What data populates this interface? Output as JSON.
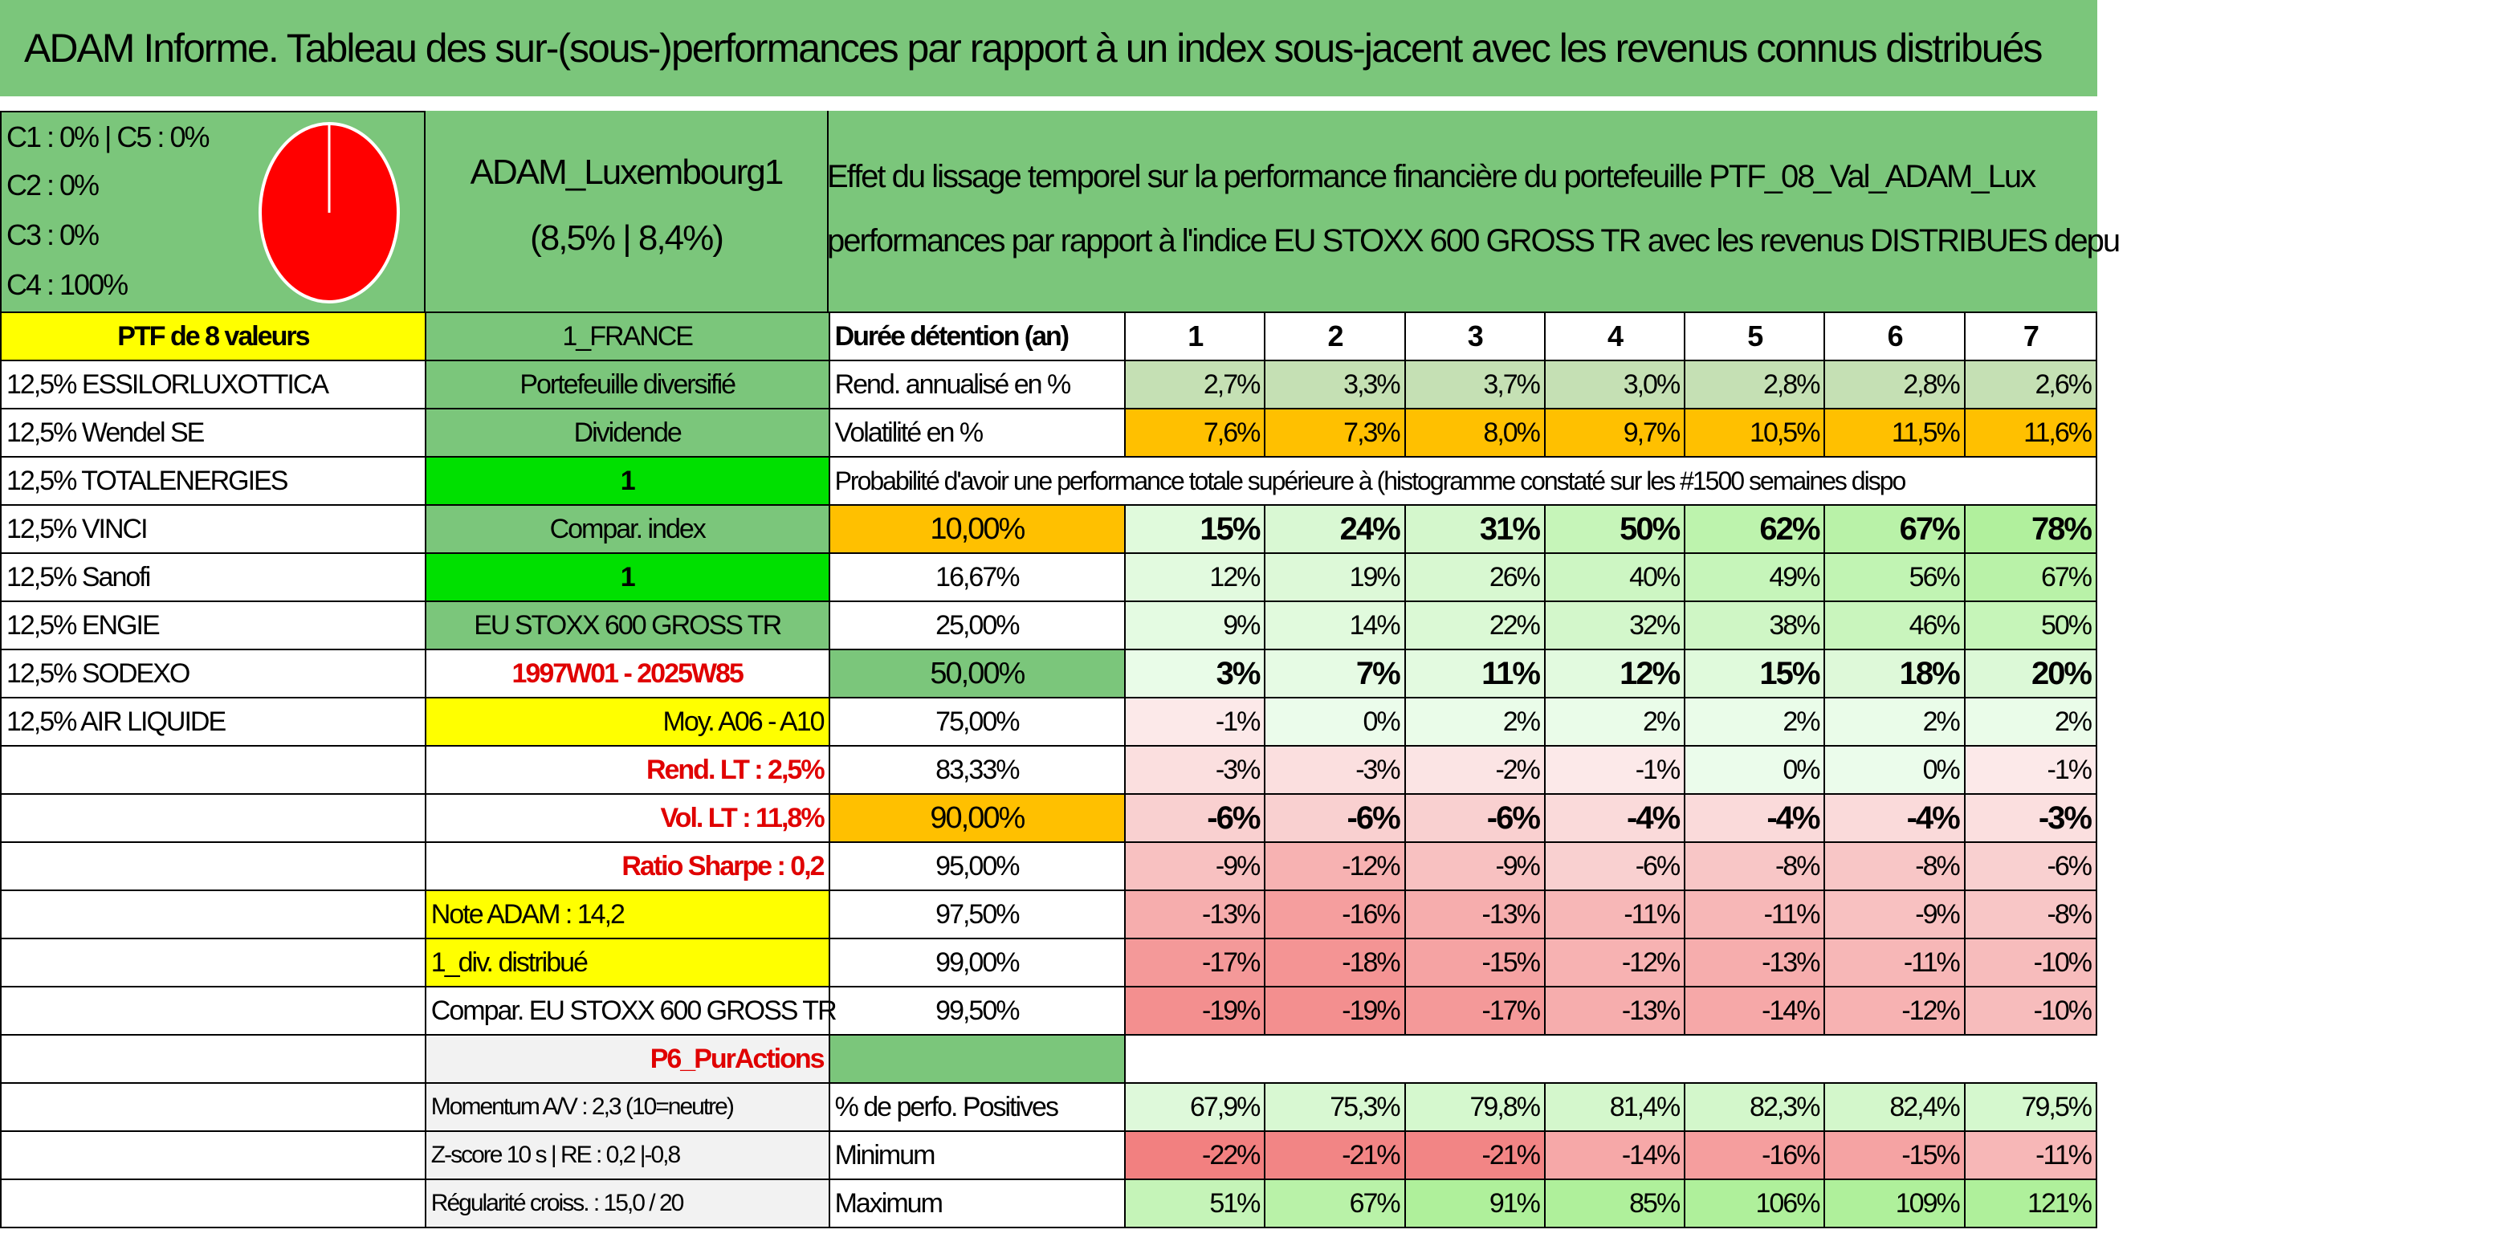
{
  "title": "ADAM Informe. Tableau des sur-(sous-)performances par rapport à un index sous-jacent avec les revenus connus distribués",
  "legend": [
    "C1 : 0% | C5 : 0%",
    "C2 : 0%",
    "C3 : 0%",
    "C4 : 100%"
  ],
  "pie_color": "#ff0000",
  "fund": {
    "name": "ADAM_Luxembourg1",
    "perf": "(8,5% | 8,4%)"
  },
  "description": {
    "line1": "Effet du lissage temporel sur la performance financière du portefeuille PTF_08_Val_ADAM_Lux",
    "line2": "performances par rapport à l'indice EU STOXX 600 GROSS TR avec les revenus DISTRIBUES depu"
  },
  "ptf_label": "PTF de 8 valeurs",
  "country": "1_FRANCE",
  "holdings": [
    "12,5% ESSILORLUXOTTICA",
    "12,5% Wendel SE",
    "12,5% TOTALENERGIES",
    "12,5% VINCI",
    "12,5% Sanofi",
    "12,5% ENGIE",
    "12,5% SODEXO",
    "12,5% AIR LIQUIDE"
  ],
  "mid_column": [
    "Portefeuille diversifié",
    "Dividende",
    "1",
    "Compar. index",
    "1",
    "EU STOXX 600 GROSS TR",
    "1997W01 - 2025W85",
    "Moy. A06 - A10",
    "Rend. LT : 2,5%",
    "Vol. LT : 11,8%",
    "Ratio Sharpe : 0,2",
    "Note ADAM : 14,2",
    "1_div. distribué",
    "Compar. EU STOXX 600 GROSS TR",
    "P6_PurActions",
    "Momentum A/V : 2,3 (10=neutre)",
    "Z-score 10 s | RE : 0,2 |-0,8",
    "Régularité croiss. : 15,0 / 20"
  ],
  "table": {
    "header_label": "Durée détention (an)",
    "years": [
      "1",
      "2",
      "3",
      "4",
      "5",
      "6",
      "7"
    ],
    "rend_label": "Rend. annualisé en %",
    "rend": [
      "2,7%",
      "3,3%",
      "3,7%",
      "3,0%",
      "2,8%",
      "2,8%",
      "2,6%"
    ],
    "vol_label": "Volatilité en %",
    "vol": [
      "7,6%",
      "7,3%",
      "8,0%",
      "9,7%",
      "10,5%",
      "11,5%",
      "11,6%"
    ],
    "prob_label": "Probabilité d'avoir une performance totale supérieure à (histogramme constaté sur les #1500 semaines dispo",
    "quantiles": [
      {
        "q": "10,00%",
        "v": [
          "15%",
          "24%",
          "31%",
          "50%",
          "62%",
          "67%",
          "78%"
        ]
      },
      {
        "q": "16,67%",
        "v": [
          "12%",
          "19%",
          "26%",
          "40%",
          "49%",
          "56%",
          "67%"
        ]
      },
      {
        "q": "25,00%",
        "v": [
          "9%",
          "14%",
          "22%",
          "32%",
          "38%",
          "46%",
          "50%"
        ]
      },
      {
        "q": "50,00%",
        "v": [
          "3%",
          "7%",
          "11%",
          "12%",
          "15%",
          "18%",
          "20%"
        ]
      },
      {
        "q": "75,00%",
        "v": [
          "-1%",
          "0%",
          "2%",
          "2%",
          "2%",
          "2%",
          "2%"
        ]
      },
      {
        "q": "83,33%",
        "v": [
          "-3%",
          "-3%",
          "-2%",
          "-1%",
          "0%",
          "0%",
          "-1%"
        ]
      },
      {
        "q": "90,00%",
        "v": [
          "-6%",
          "-6%",
          "-6%",
          "-4%",
          "-4%",
          "-4%",
          "-3%"
        ]
      },
      {
        "q": "95,00%",
        "v": [
          "-9%",
          "-12%",
          "-9%",
          "-6%",
          "-8%",
          "-8%",
          "-6%"
        ]
      },
      {
        "q": "97,50%",
        "v": [
          "-13%",
          "-16%",
          "-13%",
          "-11%",
          "-11%",
          "-9%",
          "-8%"
        ]
      },
      {
        "q": "99,00%",
        "v": [
          "-17%",
          "-18%",
          "-15%",
          "-12%",
          "-13%",
          "-11%",
          "-10%"
        ]
      },
      {
        "q": "99,50%",
        "v": [
          "-19%",
          "-19%",
          "-17%",
          "-13%",
          "-14%",
          "-12%",
          "-10%"
        ]
      }
    ],
    "pos_label": "% de perfo. Positives",
    "pos": [
      "67,9%",
      "75,3%",
      "79,8%",
      "81,4%",
      "82,3%",
      "82,4%",
      "79,5%"
    ],
    "min_label": "Minimum",
    "min": [
      "-22%",
      "-21%",
      "-21%",
      "-14%",
      "-16%",
      "-15%",
      "-11%"
    ],
    "max_label": "Maximum",
    "max": [
      "51%",
      "67%",
      "91%",
      "85%",
      "106%",
      "109%",
      "121%"
    ]
  }
}
